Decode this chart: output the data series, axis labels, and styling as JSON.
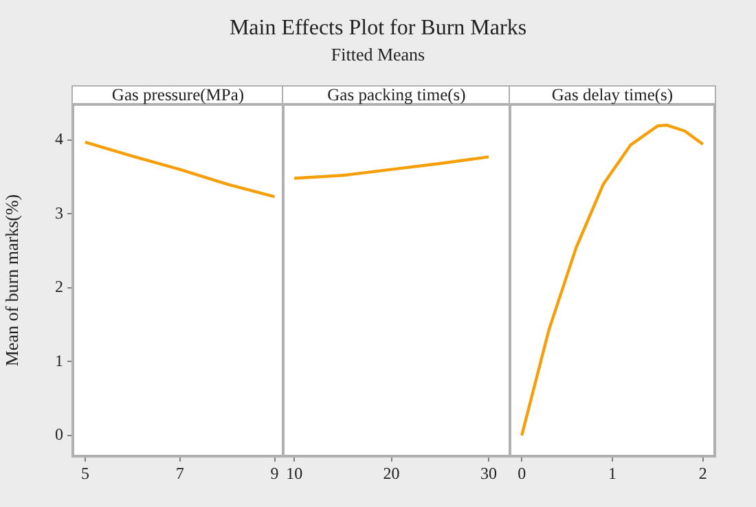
{
  "chart_data": [
    {
      "type": "other",
      "title": "Main Effects Plot for Burn Marks",
      "subtitle": "Fitted Means"
    },
    {
      "type": "line",
      "xlabel": "Gas pressure(MPa)",
      "ylabel": "Mean of burn marks(%)",
      "x": [
        5,
        6,
        7,
        8,
        9
      ],
      "series": [
        {
          "color": "#f5a00a",
          "values": [
            3.97,
            3.78,
            3.6,
            3.4,
            3.23
          ]
        }
      ],
      "xlim": [
        4.74,
        9.18
      ],
      "xticks": [
        5,
        7,
        9
      ],
      "ylim": [
        -0.28,
        4.48
      ],
      "yticks": [
        0,
        1,
        2,
        3,
        4
      ]
    },
    {
      "type": "line",
      "xlabel": "Gas packing time(s)",
      "x": [
        10,
        15,
        20,
        25,
        30
      ],
      "series": [
        {
          "color": "#f5a00a",
          "values": [
            3.48,
            3.52,
            3.6,
            3.68,
            3.77
          ]
        }
      ],
      "xlim": [
        8.85,
        32.2
      ],
      "xticks": [
        10,
        20,
        30
      ],
      "ylim": [
        -0.28,
        4.48
      ],
      "yticks": [
        0,
        1,
        2,
        3,
        4
      ],
      "tick_labels": "x"
    },
    {
      "type": "line",
      "xlabel": "Gas delay time(s)",
      "x": [
        0,
        0.3,
        0.6,
        0.9,
        1.2,
        1.5,
        1.6,
        1.8,
        2
      ],
      "series": [
        {
          "color": "#f5a00a",
          "values": [
            0,
            1.43,
            2.54,
            3.4,
            3.93,
            4.19,
            4.2,
            4.12,
            3.94
          ]
        }
      ],
      "xlim": [
        -0.13,
        2.13
      ],
      "xticks": [
        0,
        1,
        2
      ],
      "ylim": [
        -0.28,
        4.48
      ],
      "yticks": [
        0,
        1,
        2,
        3,
        4
      ],
      "tick_labels": "x"
    }
  ]
}
